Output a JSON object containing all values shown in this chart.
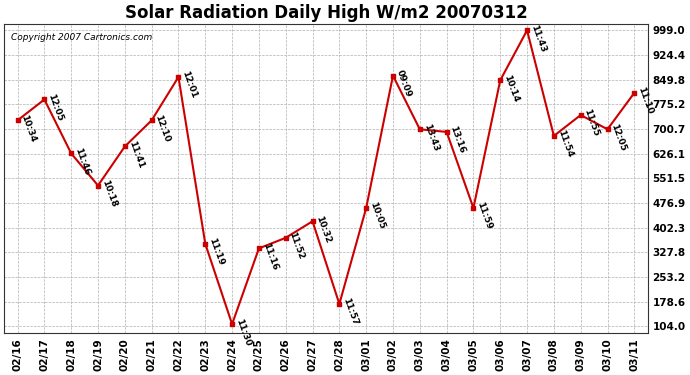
{
  "title": "Solar Radiation Daily High W/m2 20070312",
  "copyright": "Copyright 2007 Cartronics.com",
  "dates": [
    "02/16",
    "02/17",
    "02/18",
    "02/19",
    "02/20",
    "02/21",
    "02/22",
    "02/23",
    "02/24",
    "02/25",
    "02/26",
    "02/27",
    "02/28",
    "03/01",
    "03/02",
    "03/03",
    "03/04",
    "03/05",
    "03/06",
    "03/07",
    "03/08",
    "03/09",
    "03/10",
    "03/11"
  ],
  "values": [
    727,
    790,
    627,
    530,
    648,
    727,
    858,
    354,
    111,
    340,
    372,
    422,
    172,
    462,
    862,
    700,
    692,
    462,
    848,
    999,
    680,
    743,
    700,
    810
  ],
  "labels": [
    "10:34",
    "12:05",
    "11:46",
    "10:18",
    "11:41",
    "12:10",
    "12:01",
    "11:19",
    "11:30",
    "11:16",
    "11:52",
    "10:32",
    "11:57",
    "10:05",
    "09:09",
    "13:43",
    "13:16",
    "11:59",
    "10:14",
    "11:43",
    "11:54",
    "11:55",
    "12:05",
    "11:10"
  ],
  "y_ticks": [
    104.0,
    178.6,
    253.2,
    327.8,
    402.3,
    476.9,
    551.5,
    626.1,
    700.7,
    775.2,
    849.8,
    924.4,
    999.0
  ],
  "ymin": 104.0,
  "ymax": 999.0,
  "line_color": "#cc0000",
  "marker_color": "#cc0000",
  "bg_color": "#ffffff",
  "grid_color": "#b0b0b0",
  "title_fontsize": 12,
  "label_fontsize": 6.5,
  "tick_fontsize": 7.5,
  "copyright_fontsize": 6.5
}
